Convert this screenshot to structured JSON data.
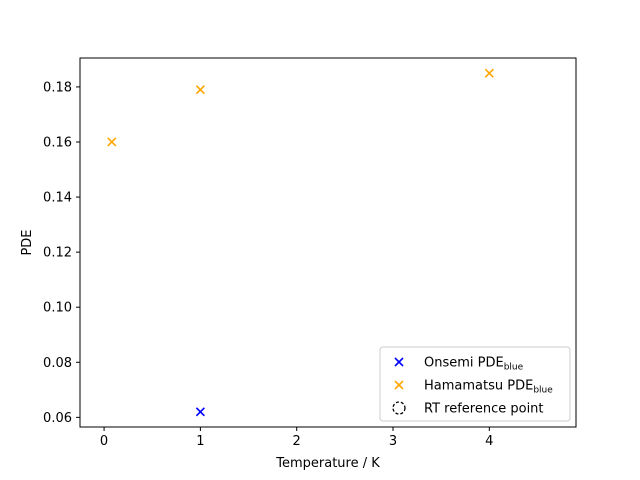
{
  "chart_data": {
    "type": "scatter",
    "title": "",
    "xlabel": "Temperature / K",
    "ylabel": "PDE",
    "xlim": [
      -0.25,
      4.9
    ],
    "ylim": [
      0.0565,
      0.1905
    ],
    "x_ticks": [
      0,
      1,
      2,
      3,
      4
    ],
    "y_ticks": [
      0.06,
      0.08,
      0.1,
      0.12,
      0.14,
      0.16,
      0.18
    ],
    "x_tick_labels": [
      "0",
      "1",
      "2",
      "3",
      "4"
    ],
    "y_tick_labels": [
      "0.06",
      "0.08",
      "0.10",
      "0.12",
      "0.14",
      "0.16",
      "0.18"
    ],
    "grid": false,
    "legend_position": "lower-right",
    "series": [
      {
        "name": "Onsemi PDE",
        "name_subscript": "blue",
        "color": "#0000ff",
        "marker": "x",
        "points": [
          {
            "x": 1.0,
            "y": 0.062
          }
        ]
      },
      {
        "name": "Hamamatsu PDE",
        "name_subscript": "blue",
        "color": "#ffa500",
        "marker": "x",
        "points": [
          {
            "x": 0.08,
            "y": 0.16
          },
          {
            "x": 1.0,
            "y": 0.179
          },
          {
            "x": 4.0,
            "y": 0.185
          }
        ]
      },
      {
        "name": "RT reference point",
        "name_subscript": "",
        "color": "#000000",
        "marker": "dashed-circle",
        "points": []
      }
    ]
  }
}
